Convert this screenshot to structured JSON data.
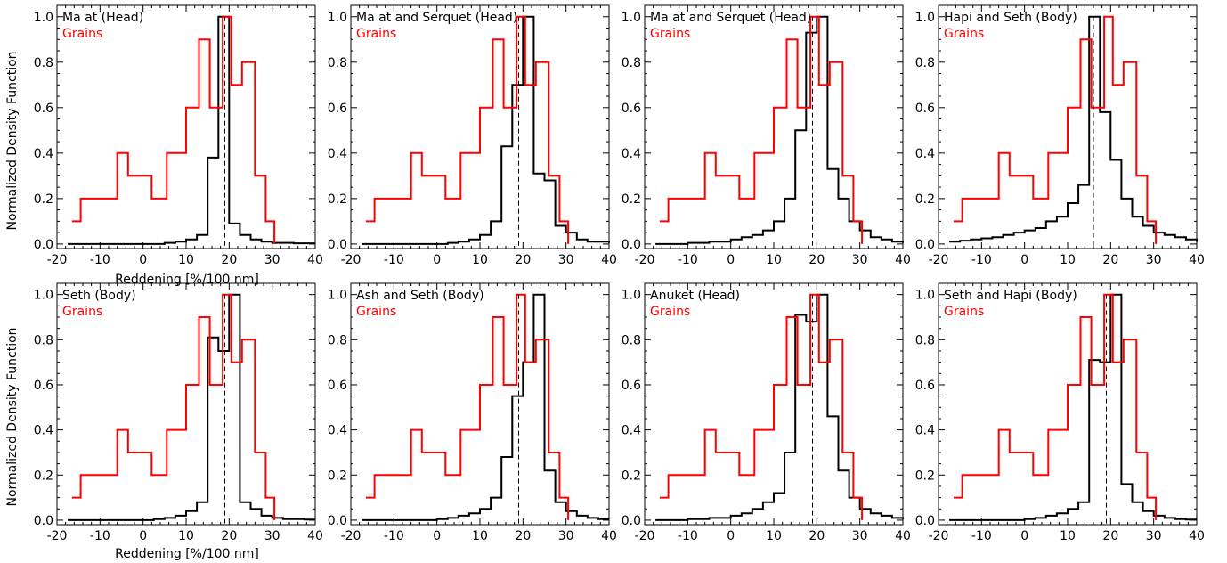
{
  "figure": {
    "ylabel": "Normalized Density Function",
    "xlabel": "Reddening [%/100 nm]"
  },
  "colors": {
    "region": "#000000",
    "grains": "#ff0000",
    "axis": "#000000"
  },
  "chart_data": [
    {
      "type": "line",
      "title": "Ma at (Head)",
      "legend": "Grains",
      "xlim": [
        -20,
        40
      ],
      "ylim": [
        -0.02,
        1.05
      ],
      "xticks": [
        -20,
        -10,
        0,
        10,
        20,
        30,
        40
      ],
      "yticks": [
        0.0,
        0.2,
        0.4,
        0.6,
        0.8,
        1.0
      ],
      "vline": 19,
      "series": [
        {
          "name": "Ma at (Head)",
          "x": [
            -17.5,
            5,
            7.5,
            10,
            12.5,
            15,
            17.5,
            20,
            22.5,
            25,
            27.5,
            30,
            32.5,
            35,
            37.5,
            40
          ],
          "y": [
            0,
            0.005,
            0.01,
            0.02,
            0.04,
            0.38,
            1.0,
            0.09,
            0.04,
            0.02,
            0.01,
            0.005,
            0.005,
            0.003,
            0.003,
            0.003
          ]
        },
        {
          "name": "Grains",
          "x": [
            -16.5,
            -14.5,
            -9,
            -6,
            -3.5,
            2,
            5.5,
            10,
            13,
            15.5,
            18.5,
            20.5,
            23,
            26,
            28.5,
            30.5
          ],
          "y": [
            0.1,
            0.2,
            0.2,
            0.4,
            0.3,
            0.2,
            0.4,
            0.6,
            0.9,
            0.6,
            1.0,
            0.7,
            0.8,
            0.3,
            0.1,
            0
          ]
        }
      ]
    },
    {
      "type": "line",
      "title": "Ma at and Serquet (Head)",
      "legend": "Grains",
      "xlim": [
        -20,
        40
      ],
      "ylim": [
        -0.02,
        1.05
      ],
      "xticks": [
        -20,
        -10,
        0,
        10,
        20,
        30,
        40
      ],
      "yticks": [
        0.0,
        0.2,
        0.4,
        0.6,
        0.8,
        1.0
      ],
      "vline": 19,
      "series": [
        {
          "name": "Ma at and Serquet (Head)",
          "x": [
            -17.5,
            2.5,
            5,
            7.5,
            10,
            12.5,
            15,
            17.5,
            20,
            22.5,
            25,
            27.5,
            30,
            32.5,
            35,
            37.5,
            40
          ],
          "y": [
            0,
            0.005,
            0.01,
            0.02,
            0.04,
            0.1,
            0.43,
            0.7,
            1.0,
            0.31,
            0.28,
            0.08,
            0.05,
            0.02,
            0.01,
            0.01,
            0.005
          ]
        },
        {
          "name": "Grains",
          "x": [
            -16.5,
            -14.5,
            -9,
            -6,
            -3.5,
            2,
            5.5,
            10,
            13,
            15.5,
            18.5,
            20.5,
            23,
            26,
            28.5,
            30.5
          ],
          "y": [
            0.1,
            0.2,
            0.2,
            0.4,
            0.3,
            0.2,
            0.4,
            0.6,
            0.9,
            0.6,
            1.0,
            0.7,
            0.8,
            0.3,
            0.1,
            0
          ]
        }
      ]
    },
    {
      "type": "line",
      "title": "Ma at and Serquet (Head)",
      "legend": "Grains",
      "xlim": [
        -20,
        40
      ],
      "ylim": [
        -0.02,
        1.05
      ],
      "xticks": [
        -20,
        -10,
        0,
        10,
        20,
        30,
        40
      ],
      "yticks": [
        0.0,
        0.2,
        0.4,
        0.6,
        0.8,
        1.0
      ],
      "vline": 19,
      "series": [
        {
          "name": "Ma at and Serquet (Head)",
          "x": [
            -17.5,
            -10,
            -5,
            0,
            2.5,
            5,
            7.5,
            10,
            12.5,
            15,
            17.5,
            20,
            22.5,
            25,
            27.5,
            30,
            32.5,
            35,
            37.5,
            40
          ],
          "y": [
            0,
            0.005,
            0.01,
            0.02,
            0.03,
            0.04,
            0.06,
            0.1,
            0.2,
            0.5,
            0.93,
            1.0,
            0.33,
            0.2,
            0.1,
            0.06,
            0.03,
            0.02,
            0.01,
            0.005
          ]
        },
        {
          "name": "Grains",
          "x": [
            -16.5,
            -14.5,
            -9,
            -6,
            -3.5,
            2,
            5.5,
            10,
            13,
            15.5,
            18.5,
            20.5,
            23,
            26,
            28.5,
            30.5
          ],
          "y": [
            0.1,
            0.2,
            0.2,
            0.4,
            0.3,
            0.2,
            0.4,
            0.6,
            0.9,
            0.6,
            1.0,
            0.7,
            0.8,
            0.3,
            0.1,
            0
          ]
        }
      ]
    },
    {
      "type": "line",
      "title": "Hapi and Seth (Body)",
      "legend": "Grains",
      "xlim": [
        -20,
        40
      ],
      "ylim": [
        -0.02,
        1.05
      ],
      "xticks": [
        -20,
        -10,
        0,
        10,
        20,
        30,
        40
      ],
      "yticks": [
        0.0,
        0.2,
        0.4,
        0.6,
        0.8,
        1.0
      ],
      "vline": 16,
      "series": [
        {
          "name": "Hapi and Seth (Body)",
          "x": [
            -17.5,
            -15,
            -12.5,
            -10,
            -7.5,
            -5,
            -2.5,
            0,
            2.5,
            5,
            7.5,
            10,
            12.5,
            15,
            17.5,
            20,
            22.5,
            25,
            27.5,
            30,
            32.5,
            35,
            37.5,
            40
          ],
          "y": [
            0.01,
            0.015,
            0.02,
            0.025,
            0.03,
            0.04,
            0.05,
            0.06,
            0.07,
            0.1,
            0.12,
            0.18,
            0.26,
            1.0,
            0.58,
            0.37,
            0.2,
            0.12,
            0.08,
            0.05,
            0.04,
            0.03,
            0.02,
            0.01
          ]
        },
        {
          "name": "Grains",
          "x": [
            -16.5,
            -14.5,
            -9,
            -6,
            -3.5,
            2,
            5.5,
            10,
            13,
            15.5,
            18.5,
            20.5,
            23,
            26,
            28.5,
            30.5
          ],
          "y": [
            0.1,
            0.2,
            0.2,
            0.4,
            0.3,
            0.2,
            0.4,
            0.6,
            0.9,
            0.6,
            1.0,
            0.7,
            0.8,
            0.3,
            0.1,
            0
          ]
        }
      ]
    },
    {
      "type": "line",
      "title": "Seth (Body)",
      "legend": "Grains",
      "xlim": [
        -20,
        40
      ],
      "ylim": [
        -0.02,
        1.05
      ],
      "xticks": [
        -20,
        -10,
        0,
        10,
        20,
        30,
        40
      ],
      "yticks": [
        0.0,
        0.2,
        0.4,
        0.6,
        0.8,
        1.0
      ],
      "vline": 19,
      "series": [
        {
          "name": "Seth (Body)",
          "x": [
            -17.5,
            2.5,
            5,
            7.5,
            10,
            12.5,
            15,
            17.5,
            20,
            22.5,
            25,
            27.5,
            30,
            32.5,
            35,
            37.5,
            40
          ],
          "y": [
            0,
            0.005,
            0.01,
            0.02,
            0.04,
            0.08,
            0.81,
            0.75,
            1.0,
            0.08,
            0.05,
            0.02,
            0.01,
            0.005,
            0.005,
            0.003,
            0.003
          ]
        },
        {
          "name": "Grains",
          "x": [
            -16.5,
            -14.5,
            -9,
            -6,
            -3.5,
            2,
            5.5,
            10,
            13,
            15.5,
            18.5,
            20.5,
            23,
            26,
            28.5,
            30.5
          ],
          "y": [
            0.1,
            0.2,
            0.2,
            0.4,
            0.3,
            0.2,
            0.4,
            0.6,
            0.9,
            0.6,
            1.0,
            0.7,
            0.8,
            0.3,
            0.1,
            0
          ]
        }
      ]
    },
    {
      "type": "line",
      "title": "Ash and Seth (Body)",
      "legend": "Grains",
      "xlim": [
        -20,
        40
      ],
      "ylim": [
        -0.02,
        1.05
      ],
      "xticks": [
        -20,
        -10,
        0,
        10,
        20,
        30,
        40
      ],
      "yticks": [
        0.0,
        0.2,
        0.4,
        0.6,
        0.8,
        1.0
      ],
      "vline": 19,
      "series": [
        {
          "name": "Ash and Seth (Body)",
          "x": [
            -17.5,
            0,
            2.5,
            5,
            7.5,
            10,
            12.5,
            15,
            17.5,
            20,
            22.5,
            25,
            27.5,
            30,
            32.5,
            35,
            37.5,
            40
          ],
          "y": [
            0,
            0.005,
            0.01,
            0.02,
            0.03,
            0.05,
            0.1,
            0.28,
            0.55,
            0.7,
            1.0,
            0.22,
            0.08,
            0.04,
            0.02,
            0.01,
            0.005,
            0.005
          ]
        },
        {
          "name": "Grains",
          "x": [
            -16.5,
            -14.5,
            -9,
            -6,
            -3.5,
            2,
            5.5,
            10,
            13,
            15.5,
            18.5,
            20.5,
            23,
            26,
            28.5,
            30.5
          ],
          "y": [
            0.1,
            0.2,
            0.2,
            0.4,
            0.3,
            0.2,
            0.4,
            0.6,
            0.9,
            0.6,
            1.0,
            0.7,
            0.8,
            0.3,
            0.1,
            0
          ]
        }
      ]
    },
    {
      "type": "line",
      "title": "Anuket (Head)",
      "legend": "Grains",
      "xlim": [
        -20,
        40
      ],
      "ylim": [
        -0.02,
        1.05
      ],
      "xticks": [
        -20,
        -10,
        0,
        10,
        20,
        30,
        40
      ],
      "yticks": [
        0.0,
        0.2,
        0.4,
        0.6,
        0.8,
        1.0
      ],
      "vline": 19,
      "series": [
        {
          "name": "Anuket (Head)",
          "x": [
            -17.5,
            -10,
            -5,
            0,
            2.5,
            5,
            7.5,
            10,
            12.5,
            15,
            17.5,
            20,
            22.5,
            25,
            27.5,
            30,
            32.5,
            35,
            37.5,
            40
          ],
          "y": [
            0,
            0.005,
            0.01,
            0.02,
            0.03,
            0.05,
            0.08,
            0.12,
            0.3,
            0.91,
            0.88,
            1.0,
            0.46,
            0.22,
            0.1,
            0.05,
            0.03,
            0.02,
            0.01,
            0.005
          ]
        },
        {
          "name": "Grains",
          "x": [
            -16.5,
            -14.5,
            -9,
            -6,
            -3.5,
            2,
            5.5,
            10,
            13,
            15.5,
            18.5,
            20.5,
            23,
            26,
            28.5,
            30.5
          ],
          "y": [
            0.1,
            0.2,
            0.2,
            0.4,
            0.3,
            0.2,
            0.4,
            0.6,
            0.9,
            0.6,
            1.0,
            0.7,
            0.8,
            0.3,
            0.1,
            0
          ]
        }
      ]
    },
    {
      "type": "line",
      "title": "Seth and Hapi (Body)",
      "legend": "Grains",
      "xlim": [
        -20,
        40
      ],
      "ylim": [
        -0.02,
        1.05
      ],
      "xticks": [
        -20,
        -10,
        0,
        10,
        20,
        30,
        40
      ],
      "yticks": [
        0.0,
        0.2,
        0.4,
        0.6,
        0.8,
        1.0
      ],
      "vline": 19,
      "series": [
        {
          "name": "Seth and Hapi (Body)",
          "x": [
            -17.5,
            0,
            2.5,
            5,
            7.5,
            10,
            12.5,
            15,
            17.5,
            20,
            22.5,
            25,
            27.5,
            30,
            32.5,
            35,
            37.5,
            40
          ],
          "y": [
            0,
            0.005,
            0.01,
            0.02,
            0.03,
            0.05,
            0.08,
            0.71,
            0.7,
            1.0,
            0.16,
            0.08,
            0.04,
            0.02,
            0.01,
            0.005,
            0.003,
            0.003
          ]
        },
        {
          "name": "Grains",
          "x": [
            -16.5,
            -14.5,
            -9,
            -6,
            -3.5,
            2,
            5.5,
            10,
            13,
            15.5,
            18.5,
            20.5,
            23,
            26,
            28.5,
            30.5
          ],
          "y": [
            0.1,
            0.2,
            0.2,
            0.4,
            0.3,
            0.2,
            0.4,
            0.6,
            0.9,
            0.6,
            1.0,
            0.7,
            0.8,
            0.3,
            0.1,
            0
          ]
        }
      ]
    }
  ]
}
